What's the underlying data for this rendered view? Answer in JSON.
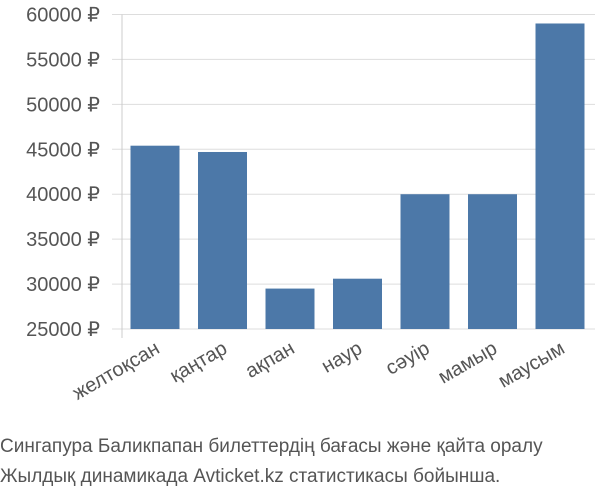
{
  "chart_data": {
    "type": "bar",
    "categories": [
      "желтоқсан",
      "қаңтар",
      "ақпан",
      "наур",
      "сәуір",
      "мамыр",
      "маусым"
    ],
    "values": [
      45400,
      44700,
      29500,
      30600,
      40000,
      40000,
      59000
    ],
    "tick_labels": [
      "25000 ₽",
      "30000 ₽",
      "35000 ₽",
      "40000 ₽",
      "45000 ₽",
      "50000 ₽",
      "55000 ₽",
      "60000 ₽"
    ],
    "ticks": [
      25000,
      30000,
      35000,
      40000,
      45000,
      50000,
      55000,
      60000
    ],
    "ylim": [
      24000,
      60000
    ],
    "grid": "horizontal",
    "bar_color": "#4c78a8",
    "grid_color": "#dddddd"
  },
  "caption": {
    "line1": "Сингапура Баликпапан билеттердің бағасы және қайта оралу",
    "line2": "Жылдық динамикада Avticket.kz статистикасы бойынша."
  }
}
